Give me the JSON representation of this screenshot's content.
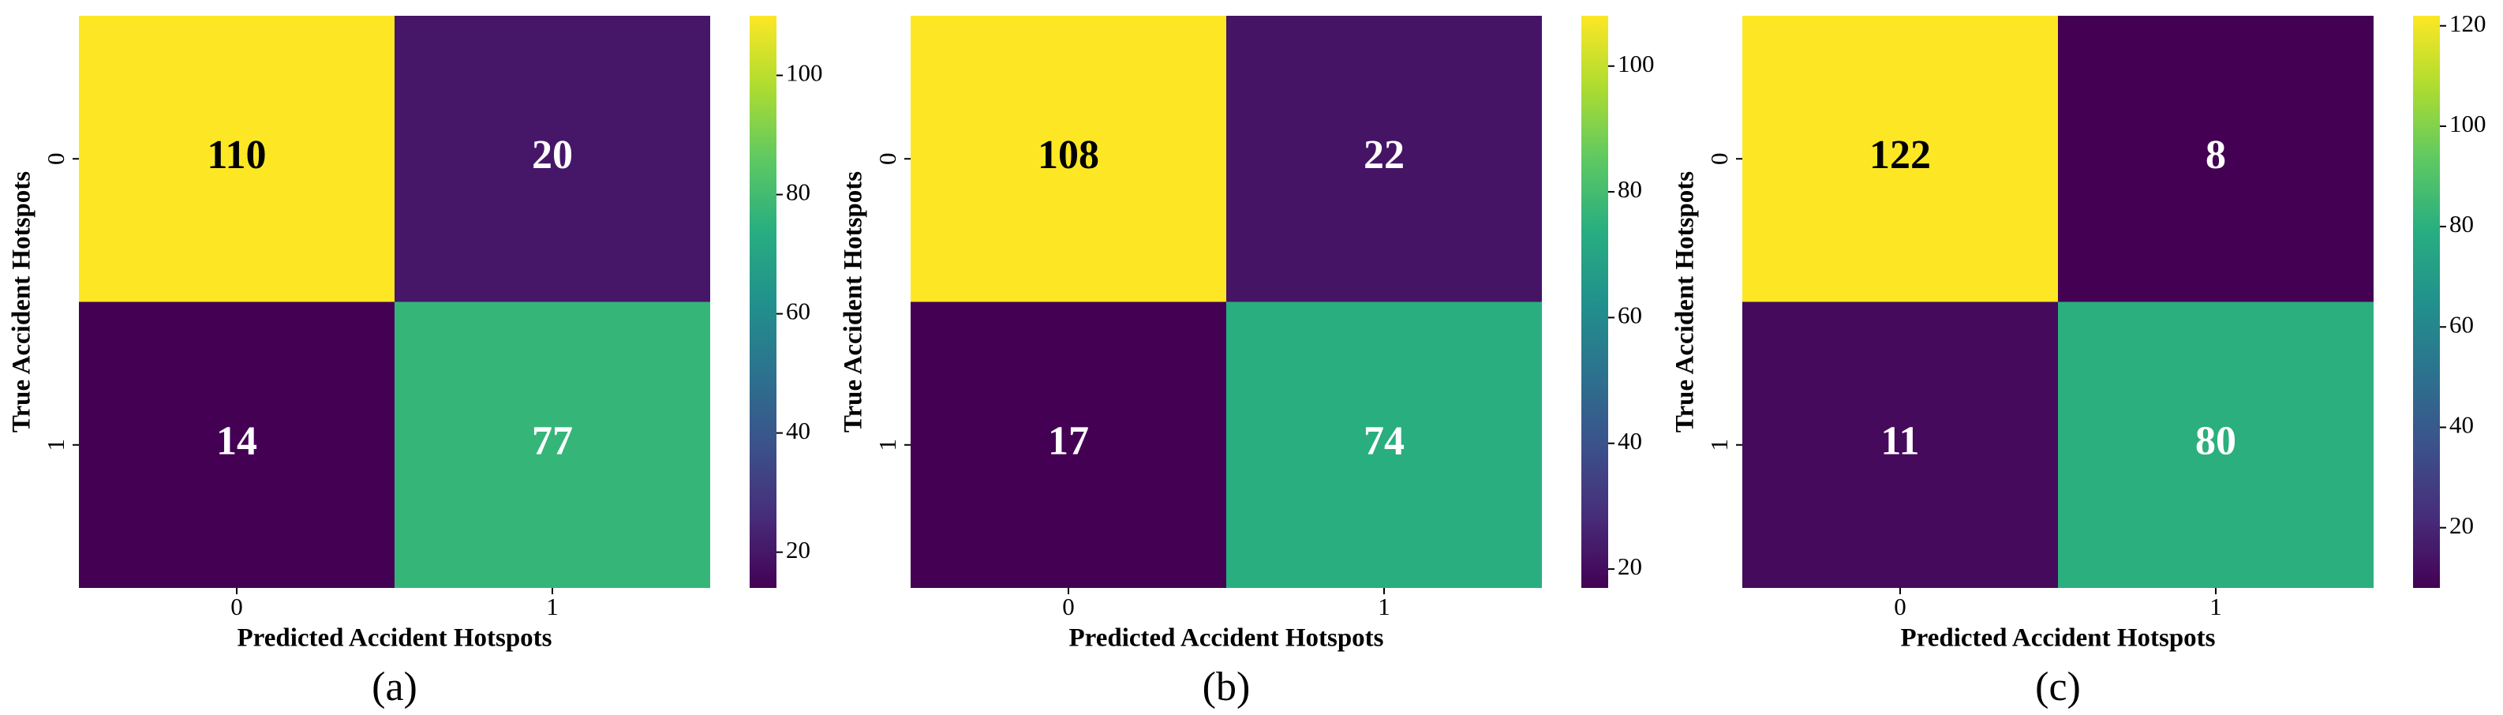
{
  "chart_data": [
    {
      "type": "heatmap",
      "caption": "(a)",
      "xlabel": "Predicted Accident Hotspots",
      "ylabel": "True Accident Hotspots",
      "xcategories": [
        "0",
        "1"
      ],
      "ycategories": [
        "0",
        "1"
      ],
      "values": [
        [
          110,
          20
        ],
        [
          14,
          77
        ]
      ],
      "colormap": "viridis",
      "zlim": [
        14,
        110
      ],
      "zticks": [
        20,
        40,
        60,
        80,
        100
      ]
    },
    {
      "type": "heatmap",
      "caption": "(b)",
      "xlabel": "Predicted Accident Hotspots",
      "ylabel": "True Accident Hotspots",
      "xcategories": [
        "0",
        "1"
      ],
      "ycategories": [
        "0",
        "1"
      ],
      "values": [
        [
          108,
          22
        ],
        [
          17,
          74
        ]
      ],
      "colormap": "viridis",
      "zlim": [
        17,
        108
      ],
      "zticks": [
        20,
        40,
        60,
        80,
        100
      ]
    },
    {
      "type": "heatmap",
      "caption": "(c)",
      "xlabel": "Predicted Accident Hotspots",
      "ylabel": "True Accident Hotspots",
      "xcategories": [
        "0",
        "1"
      ],
      "ycategories": [
        "0",
        "1"
      ],
      "values": [
        [
          122,
          8
        ],
        [
          11,
          80
        ]
      ],
      "colormap": "viridis",
      "zlim": [
        8,
        122
      ],
      "zticks": [
        20,
        40,
        60,
        80,
        100,
        120
      ]
    }
  ]
}
